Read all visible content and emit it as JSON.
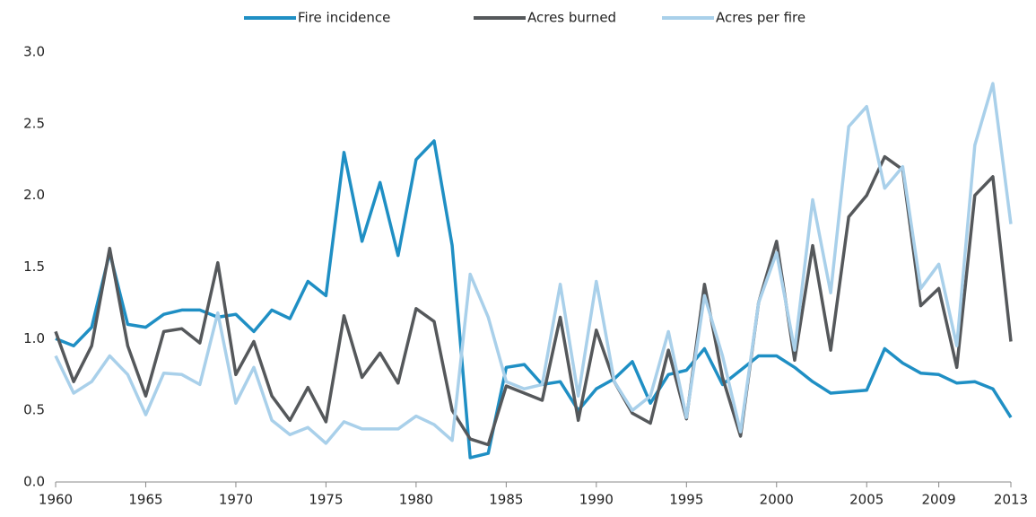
{
  "chart_data": {
    "type": "line",
    "x": [
      1960,
      1961,
      1962,
      1963,
      1964,
      1965,
      1966,
      1967,
      1968,
      1969,
      1970,
      1971,
      1972,
      1973,
      1974,
      1975,
      1976,
      1977,
      1978,
      1979,
      1980,
      1981,
      1982,
      1983,
      1984,
      1985,
      1986,
      1987,
      1988,
      1989,
      1990,
      1991,
      1992,
      1993,
      1994,
      1995,
      1996,
      1997,
      1998,
      1999,
      2000,
      2001,
      2002,
      2003,
      2004,
      2005,
      2006,
      2007,
      2008,
      2009,
      2010,
      2011,
      2012,
      2013
    ],
    "series": [
      {
        "name": "Fire incidence",
        "color": "#1f8fc4",
        "values": [
          1.0,
          0.95,
          1.08,
          1.6,
          1.1,
          1.08,
          1.17,
          1.2,
          1.2,
          1.15,
          1.17,
          1.05,
          1.2,
          1.14,
          1.4,
          1.3,
          2.3,
          1.68,
          2.09,
          1.58,
          2.25,
          2.38,
          1.65,
          0.17,
          0.2,
          0.8,
          0.82,
          0.68,
          0.7,
          0.5,
          0.65,
          0.72,
          0.84,
          0.55,
          0.75,
          0.78,
          0.93,
          0.68,
          0.78,
          0.88,
          0.88,
          0.8,
          0.7,
          0.62,
          0.63,
          0.64,
          0.93,
          0.83,
          0.76,
          0.75,
          0.69,
          0.7,
          0.65,
          0.45
        ]
      },
      {
        "name": "Acres burned",
        "color": "#55585b",
        "values": [
          1.05,
          0.7,
          0.95,
          1.63,
          0.95,
          0.6,
          1.05,
          1.07,
          0.97,
          1.53,
          0.75,
          0.98,
          0.6,
          0.43,
          0.66,
          0.42,
          1.16,
          0.73,
          0.9,
          0.69,
          1.21,
          1.12,
          0.5,
          0.3,
          0.26,
          0.67,
          0.62,
          0.57,
          1.15,
          0.43,
          1.06,
          0.7,
          0.48,
          0.41,
          0.92,
          0.44,
          1.38,
          0.73,
          0.32,
          1.25,
          1.68,
          0.85,
          1.65,
          0.92,
          1.85,
          2.0,
          2.27,
          2.18,
          1.23,
          1.35,
          0.8,
          2.0,
          2.13,
          0.98
        ]
      },
      {
        "name": "Acres per fire",
        "color": "#a9d0ea",
        "values": [
          0.88,
          0.62,
          0.7,
          0.88,
          0.75,
          0.47,
          0.76,
          0.75,
          0.68,
          1.18,
          0.55,
          0.8,
          0.43,
          0.33,
          0.38,
          0.27,
          0.42,
          0.37,
          0.37,
          0.37,
          0.46,
          0.4,
          0.29,
          1.45,
          1.15,
          0.7,
          0.65,
          0.68,
          1.38,
          0.6,
          1.4,
          0.7,
          0.5,
          0.6,
          1.05,
          0.45,
          1.3,
          0.88,
          0.35,
          1.25,
          1.6,
          0.92,
          1.97,
          1.32,
          2.48,
          2.62,
          2.05,
          2.2,
          1.35,
          1.52,
          0.95,
          2.35,
          2.78,
          1.8
        ]
      }
    ],
    "xlim": [
      1960,
      2013
    ],
    "xticks": [
      1960,
      1965,
      1970,
      1975,
      1980,
      1985,
      1990,
      1995,
      2000,
      2005,
      2009,
      2013
    ],
    "ylim": [
      0,
      3
    ],
    "yticks": [
      {
        "value": 0,
        "label": "0.0"
      },
      {
        "value": 0.5,
        "label": "0.5"
      },
      {
        "value": 1,
        "label": "1.0"
      },
      {
        "value": 1.5,
        "label": "1.5"
      },
      {
        "value": 2,
        "label": "2.0"
      },
      {
        "value": 2.5,
        "label": "2.5"
      },
      {
        "value": 3,
        "label": "3.0"
      }
    ],
    "legend": "top"
  }
}
